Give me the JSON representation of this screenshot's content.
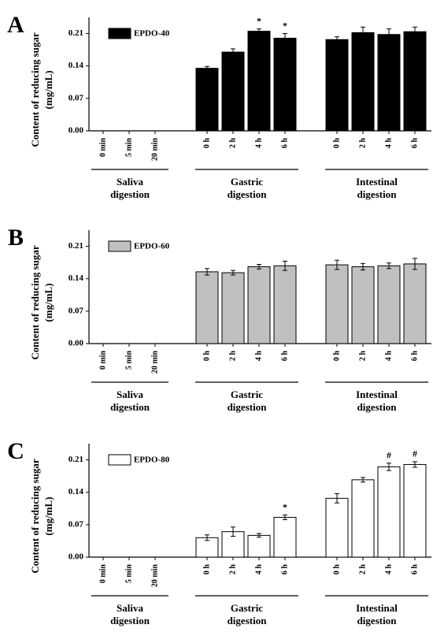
{
  "chart_data": [
    {
      "type": "bar",
      "panel": "A",
      "ylabel_lines": [
        "Content of reducing sugar",
        "(mg/mL)"
      ],
      "series_name": "EPDO-40",
      "color": "#000000",
      "ylim": [
        0,
        0.245
      ],
      "yticks": [
        {
          "value": 0,
          "label": "0.00"
        },
        0.07,
        0.14,
        0.21
      ],
      "groups": [
        {
          "label_lines": [
            "Saliva",
            "digestion"
          ],
          "categories": [
            "0 min",
            "5 min",
            "20 min"
          ],
          "values": [
            null,
            null,
            null
          ],
          "errors": [
            null,
            null,
            null
          ],
          "markers": [
            null,
            null,
            null
          ]
        },
        {
          "label_lines": [
            "Gastric",
            "digestion"
          ],
          "categories": [
            "0 h",
            "2 h",
            "4 h",
            "6 h"
          ],
          "values": [
            0.135,
            0.17,
            0.215,
            0.2
          ],
          "errors": [
            0.004,
            0.007,
            0.005,
            0.01
          ],
          "markers": [
            null,
            null,
            "*",
            "*"
          ]
        },
        {
          "label_lines": [
            "Intestinal",
            "digestion"
          ],
          "categories": [
            "0 h",
            "2 h",
            "4 h",
            "6 h"
          ],
          "values": [
            0.197,
            0.212,
            0.208,
            0.214
          ],
          "errors": [
            0.006,
            0.012,
            0.012,
            0.01
          ],
          "markers": [
            null,
            null,
            null,
            null
          ]
        }
      ]
    },
    {
      "type": "bar",
      "panel": "B",
      "ylabel_lines": [
        "Content of reducing sugar",
        "(mg/mL)"
      ],
      "series_name": "EPDO-60",
      "color": "#c0c0c0",
      "ylim": [
        0,
        0.245
      ],
      "yticks": [
        {
          "value": 0,
          "label": "0.00"
        },
        0.07,
        0.14,
        0.21
      ],
      "groups": [
        {
          "label_lines": [
            "Saliva",
            "digestion"
          ],
          "categories": [
            "0 min",
            "5 min",
            "20 min"
          ],
          "values": [
            null,
            null,
            null
          ],
          "errors": [
            null,
            null,
            null
          ],
          "markers": [
            null,
            null,
            null
          ]
        },
        {
          "label_lines": [
            "Gastric",
            "digestion"
          ],
          "categories": [
            "0 h",
            "2 h",
            "4 h",
            "6 h"
          ],
          "values": [
            0.155,
            0.153,
            0.166,
            0.168
          ],
          "errors": [
            0.007,
            0.005,
            0.005,
            0.01
          ],
          "markers": [
            null,
            null,
            null,
            null
          ]
        },
        {
          "label_lines": [
            "Intestinal",
            "digestion"
          ],
          "categories": [
            "0 h",
            "2 h",
            "4 h",
            "6 h"
          ],
          "values": [
            0.17,
            0.166,
            0.168,
            0.172
          ],
          "errors": [
            0.01,
            0.007,
            0.006,
            0.012
          ],
          "markers": [
            null,
            null,
            null,
            null
          ]
        }
      ]
    },
    {
      "type": "bar",
      "panel": "C",
      "ylabel_lines": [
        "Content of reducing sugar",
        "(mg/mL)"
      ],
      "series_name": "EPDO-80",
      "color": "#ffffff",
      "ylim": [
        0,
        0.245
      ],
      "yticks": [
        {
          "value": 0,
          "label": "0.00"
        },
        0.07,
        0.14,
        0.21
      ],
      "groups": [
        {
          "label_lines": [
            "Saliva",
            "digestion"
          ],
          "categories": [
            "0 min",
            "5 min",
            "20 min"
          ],
          "values": [
            null,
            null,
            null
          ],
          "errors": [
            null,
            null,
            null
          ],
          "markers": [
            null,
            null,
            null
          ]
        },
        {
          "label_lines": [
            "Gastric",
            "digestion"
          ],
          "categories": [
            "0 h",
            "2 h",
            "4 h",
            "6 h"
          ],
          "values": [
            0.042,
            0.055,
            0.047,
            0.086
          ],
          "errors": [
            0.006,
            0.01,
            0.004,
            0.005
          ],
          "markers": [
            null,
            null,
            null,
            "*"
          ]
        },
        {
          "label_lines": [
            "Intestinal",
            "digestion"
          ],
          "categories": [
            "0 h",
            "2 h",
            "4 h",
            "6 h"
          ],
          "values": [
            0.127,
            0.167,
            0.195,
            0.2
          ],
          "errors": [
            0.01,
            0.005,
            0.008,
            0.006
          ],
          "markers": [
            null,
            null,
            "#",
            "#"
          ]
        }
      ]
    }
  ]
}
